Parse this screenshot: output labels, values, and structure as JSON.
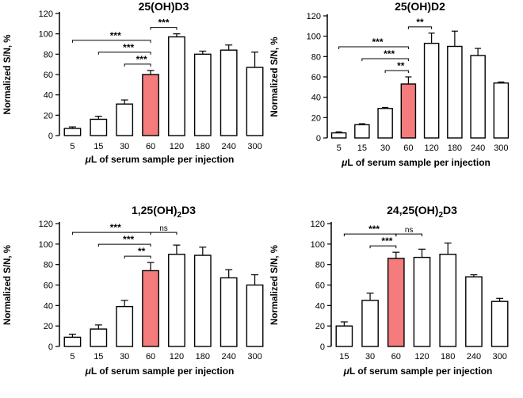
{
  "chart_data": [
    {
      "type": "bar",
      "title": "25(OH)D3",
      "xlabel": "μL of serum sample per injection",
      "ylabel": "Normalized S/N, %",
      "ylim": [
        0,
        120
      ],
      "yticks": [
        0,
        20,
        40,
        60,
        80,
        100,
        120
      ],
      "categories": [
        "5",
        "15",
        "30",
        "60",
        "120",
        "180",
        "240",
        "300"
      ],
      "values": [
        7,
        16,
        31,
        60,
        97,
        80,
        84,
        67
      ],
      "errors": [
        1.5,
        3,
        4,
        4,
        3,
        3,
        5,
        15
      ],
      "highlight_index": 3,
      "highlight_color": "#f47c7c",
      "bar_color": "#ffffff",
      "significance": [
        {
          "from": "5",
          "to": "60",
          "label": "***"
        },
        {
          "from": "15",
          "to": "60",
          "label": "***"
        },
        {
          "from": "30",
          "to": "60",
          "label": "***"
        },
        {
          "from": "60",
          "to": "120",
          "label": "***"
        }
      ]
    },
    {
      "type": "bar",
      "title": "25(OH)D2",
      "xlabel": "μL of serum sample per injection",
      "ylabel": "Normalized S/N, %",
      "ylim": [
        0,
        120
      ],
      "yticks": [
        0,
        20,
        40,
        60,
        80,
        100,
        120
      ],
      "categories": [
        "5",
        "15",
        "30",
        "60",
        "120",
        "180",
        "240",
        "300"
      ],
      "values": [
        5,
        13,
        29,
        53,
        93,
        90,
        81,
        54
      ],
      "errors": [
        1,
        1,
        1,
        7,
        10,
        15,
        7,
        1
      ],
      "highlight_index": 3,
      "highlight_color": "#f47c7c",
      "bar_color": "#ffffff",
      "significance": [
        {
          "from": "5",
          "to": "60",
          "label": "***"
        },
        {
          "from": "15",
          "to": "60",
          "label": "***"
        },
        {
          "from": "30",
          "to": "60",
          "label": "**"
        },
        {
          "from": "60",
          "to": "120",
          "label": "**"
        }
      ]
    },
    {
      "type": "bar",
      "title": "1,25(OH)2D3",
      "xlabel": "μL of serum sample per injection",
      "ylabel": "Normalized S/N, %",
      "ylim": [
        0,
        120
      ],
      "yticks": [
        0,
        20,
        40,
        60,
        80,
        100,
        120
      ],
      "categories": [
        "5",
        "15",
        "30",
        "60",
        "120",
        "180",
        "240",
        "300"
      ],
      "values": [
        9,
        17,
        39,
        74,
        90,
        89,
        67,
        60
      ],
      "errors": [
        3,
        4,
        6,
        8,
        9,
        8,
        8,
        10
      ],
      "highlight_index": 3,
      "highlight_color": "#f47c7c",
      "bar_color": "#ffffff",
      "significance": [
        {
          "from": "5",
          "to": "60",
          "label": "***"
        },
        {
          "from": "15",
          "to": "60",
          "label": "***"
        },
        {
          "from": "30",
          "to": "60",
          "label": "**"
        },
        {
          "from": "60",
          "to": "120",
          "label": "ns"
        }
      ]
    },
    {
      "type": "bar",
      "title": "24,25(OH)2D3",
      "xlabel": "μL of serum sample per injection",
      "ylabel": "Normalized S/N, %",
      "ylim": [
        0,
        120
      ],
      "yticks": [
        0,
        20,
        40,
        60,
        80,
        100,
        120
      ],
      "categories": [
        "15",
        "30",
        "60",
        "120",
        "180",
        "240",
        "300"
      ],
      "values": [
        20,
        45,
        86,
        87,
        90,
        68,
        44
      ],
      "errors": [
        4,
        7,
        6,
        8,
        11,
        2,
        3
      ],
      "highlight_index": 2,
      "highlight_color": "#f47c7c",
      "bar_color": "#ffffff",
      "significance": [
        {
          "from": "15",
          "to": "60",
          "label": "***"
        },
        {
          "from": "30",
          "to": "60",
          "label": "***"
        },
        {
          "from": "60",
          "to": "120",
          "label": "ns"
        }
      ]
    }
  ]
}
